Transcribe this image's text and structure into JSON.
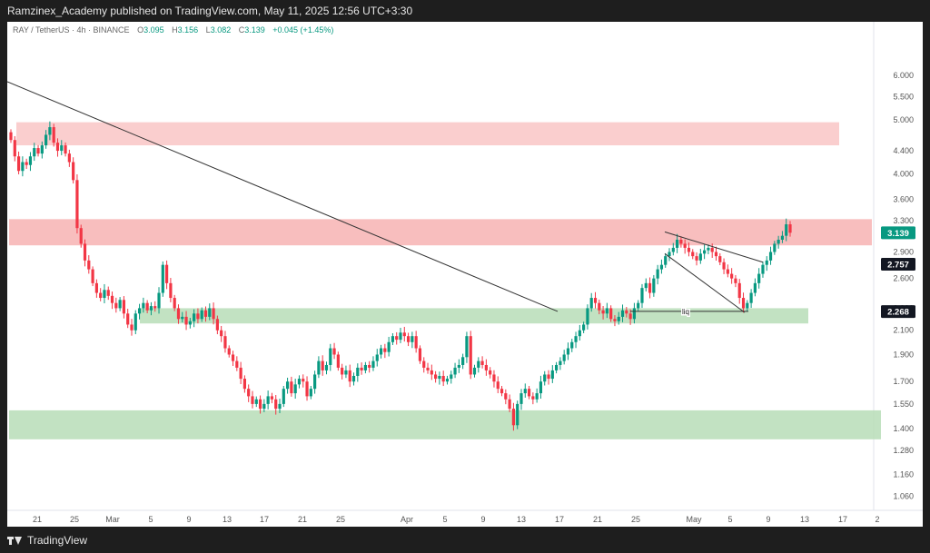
{
  "header": {
    "text": "Ramzinex_Academy published on TradingView.com, May 11, 2025 12:56 UTC+3:30"
  },
  "footer": {
    "brand": "TradingView"
  },
  "legend": {
    "symbol": "RAY / TetherUS · 4h · BINANCE",
    "o_label": "O",
    "o": "3.095",
    "h_label": "H",
    "h": "3.156",
    "l_label": "L",
    "l": "3.082",
    "c_label": "C",
    "c": "3.139",
    "change": "+0.045 (+1.45%)"
  },
  "colors": {
    "up": "#089981",
    "down": "#f23645",
    "supply_zone": "#f7b3b3",
    "demand_zone": "#b7ddb7",
    "last_price_tag": "#089981",
    "level_tag": "#131722"
  },
  "chart_data": {
    "type": "candlestick",
    "y_scale": "log",
    "ylim": [
      1.0,
      7.0
    ],
    "y_ticks": [
      "6.000",
      "5.500",
      "5.000",
      "4.400",
      "4.000",
      "3.600",
      "3.300",
      "2.900",
      "2.600",
      "2.300",
      "2.100",
      "1.900",
      "1.700",
      "1.550",
      "1.400",
      "1.280",
      "1.160",
      "1.060"
    ],
    "x_ticks": [
      "21",
      "25",
      "Mar",
      "5",
      "9",
      "13",
      "17",
      "21",
      "25",
      "Apr",
      "5",
      "9",
      "13",
      "17",
      "21",
      "25",
      "May",
      "5",
      "9",
      "13",
      "17",
      "2"
    ],
    "price_tags": [
      {
        "value": "3.139",
        "kind": "last"
      },
      {
        "value": "2.757",
        "kind": "level"
      },
      {
        "value": "2.268",
        "kind": "level"
      }
    ],
    "zones": [
      {
        "kind": "supply",
        "from": 4.5,
        "to": 4.95
      },
      {
        "kind": "supply",
        "from": 2.98,
        "to": 3.32
      },
      {
        "kind": "demand",
        "from": 2.16,
        "to": 2.3
      },
      {
        "kind": "demand",
        "from": 1.34,
        "to": 1.51
      }
    ],
    "annotations": [
      {
        "text": "liq"
      }
    ],
    "series": [
      {
        "close": [
          4.6,
          4.3,
          4.05,
          4.2,
          4.15,
          4.3,
          4.45,
          4.35,
          4.5,
          4.7,
          4.85,
          4.55,
          4.4,
          4.5,
          4.35,
          4.2,
          3.9,
          3.2,
          3.0,
          2.8,
          2.7,
          2.55,
          2.45,
          2.4,
          2.48,
          2.42,
          2.35,
          2.3,
          2.38,
          2.25,
          2.15,
          2.1,
          2.25,
          2.3,
          2.35,
          2.28,
          2.32,
          2.3,
          2.45,
          2.75,
          2.55,
          2.4,
          2.3,
          2.2,
          2.22,
          2.15,
          2.18,
          2.25,
          2.2,
          2.28,
          2.22,
          2.3,
          2.2,
          2.1,
          2.05,
          1.95,
          1.9,
          1.85,
          1.8,
          1.72,
          1.65,
          1.6,
          1.55,
          1.58,
          1.52,
          1.55,
          1.6,
          1.58,
          1.52,
          1.55,
          1.65,
          1.7,
          1.62,
          1.68,
          1.72,
          1.7,
          1.6,
          1.65,
          1.75,
          1.85,
          1.78,
          1.82,
          1.95,
          1.9,
          1.8,
          1.75,
          1.78,
          1.7,
          1.74,
          1.8,
          1.78,
          1.82,
          1.8,
          1.85,
          1.9,
          1.95,
          1.92,
          2.0,
          2.05,
          2.02,
          2.08,
          2.05,
          2.0,
          2.05,
          1.95,
          1.85,
          1.8,
          1.78,
          1.75,
          1.72,
          1.74,
          1.7,
          1.72,
          1.75,
          1.8,
          1.82,
          1.88,
          2.05,
          1.75,
          1.8,
          1.85,
          1.82,
          1.78,
          1.75,
          1.7,
          1.65,
          1.62,
          1.58,
          1.52,
          1.42,
          1.55,
          1.62,
          1.65,
          1.6,
          1.58,
          1.62,
          1.7,
          1.75,
          1.72,
          1.78,
          1.82,
          1.85,
          1.9,
          1.95,
          2.0,
          2.05,
          2.1,
          2.15,
          2.3,
          2.4,
          2.35,
          2.28,
          2.25,
          2.3,
          2.2,
          2.18,
          2.22,
          2.28,
          2.25,
          2.2,
          2.3,
          2.35,
          2.5,
          2.55,
          2.45,
          2.6,
          2.7,
          2.75,
          2.85,
          2.9,
          2.95,
          3.05,
          3.0,
          2.95,
          2.9,
          2.85,
          2.8,
          2.88,
          2.92,
          2.95,
          2.9,
          2.85,
          2.78,
          2.7,
          2.65,
          2.6,
          2.55,
          2.4,
          2.3,
          2.35,
          2.45,
          2.55,
          2.65,
          2.75,
          2.8,
          2.9,
          3.0,
          3.05,
          3.1,
          3.25,
          3.139
        ]
      }
    ]
  }
}
